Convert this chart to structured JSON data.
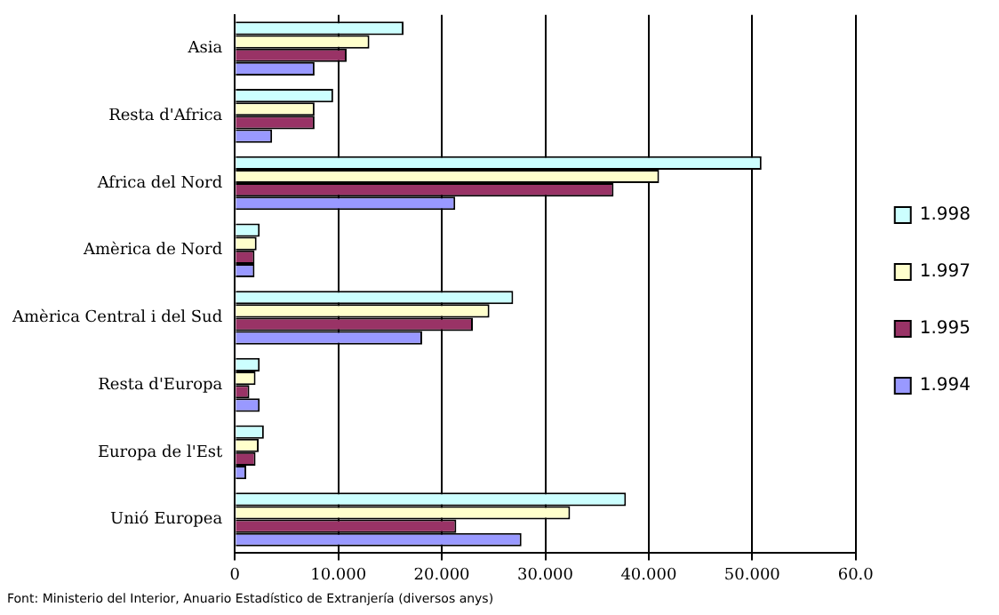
{
  "chart_data": {
    "type": "bar",
    "orientation": "horizontal",
    "categories": [
      "Asia",
      "Resta d'Africa",
      "Africa del Nord",
      "Amèrica de Nord",
      "Amèrica Central i del Sud",
      "Resta d'Europa",
      "Europa de l'Est",
      "Unió Europea"
    ],
    "series": [
      {
        "name": "1.998",
        "color": "#ccffff",
        "values": [
          16.3,
          9.5,
          50.9,
          2.4,
          26.9,
          2.4,
          2.8,
          37.8
        ]
      },
      {
        "name": "1.997",
        "color": "#ffffcc",
        "values": [
          13.0,
          7.7,
          41.0,
          2.1,
          24.6,
          2.0,
          2.3,
          32.4
        ]
      },
      {
        "name": "1.995",
        "color": "#993366",
        "values": [
          10.8,
          7.7,
          36.6,
          1.9,
          23.0,
          1.4,
          2.0,
          21.4
        ]
      },
      {
        "name": "1.994",
        "color": "#9999ff",
        "values": [
          7.7,
          3.6,
          21.3,
          1.9,
          18.1,
          2.4,
          1.1,
          27.7
        ]
      }
    ],
    "xlim": [
      0,
      60
    ],
    "xticks": [
      0,
      {
        "value": 10,
        "label": "10.000"
      },
      {
        "value": 20,
        "label": "20.000"
      },
      {
        "value": 30,
        "label": "30.000"
      },
      {
        "value": 40,
        "label": "40.000"
      },
      {
        "value": 50,
        "label": "50.000"
      },
      {
        "value": 60,
        "label": "60.0"
      }
    ],
    "grid": "x",
    "legend": "right",
    "annotations": [
      "Font: Ministerio del Interior, Anuario Estadístico de Extranjería (diversos anys)"
    ]
  }
}
